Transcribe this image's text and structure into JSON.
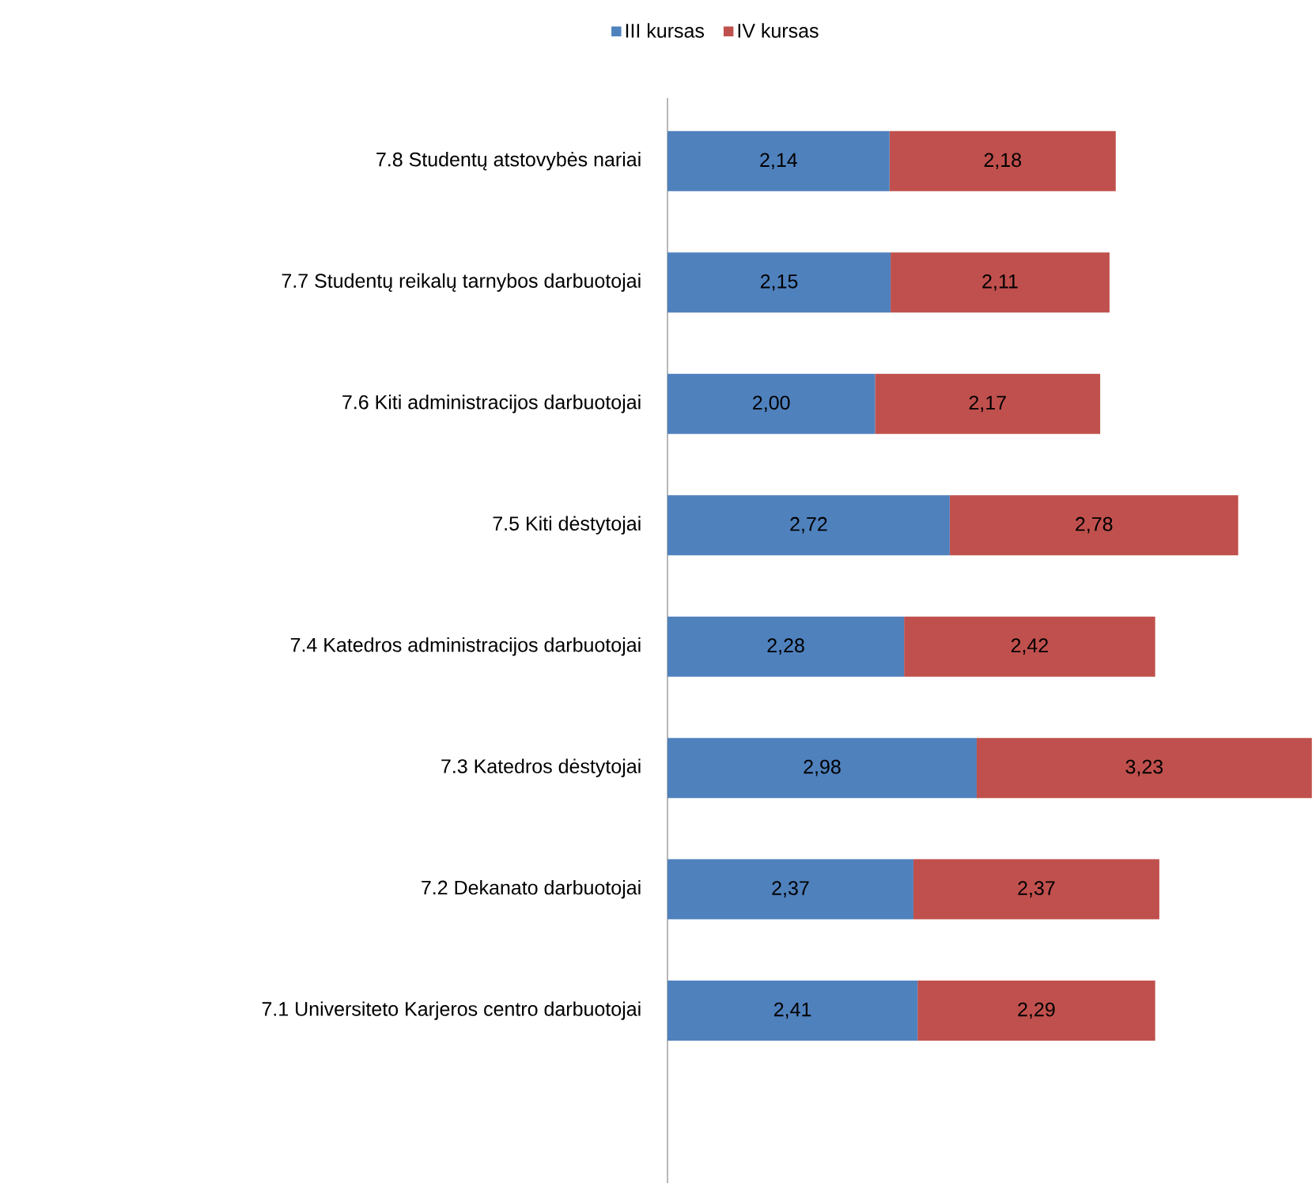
{
  "chart_data": {
    "type": "bar",
    "orientation": "horizontal",
    "stacked": true,
    "categories": [
      "7.8  Studentų atstovybės nariai",
      "7.7  Studentų reikalų tarnybos darbuotojai",
      "7.6  Kiti administracijos darbuotojai",
      "7.5  Kiti dėstytojai",
      "7.4  Katedros administracijos darbuotojai",
      "7.3  Katedros dėstytojai",
      "7.2  Dekanato darbuotojai",
      "7.1  Universiteto Karjeros centro darbuotojai"
    ],
    "series": [
      {
        "name": "III kursas",
        "color": "#4f81bd",
        "values": [
          2.14,
          2.15,
          2.0,
          2.72,
          2.28,
          2.98,
          2.37,
          2.41
        ],
        "value_labels": [
          "2,14",
          "2,15",
          "2,00",
          "2,72",
          "2,28",
          "2,98",
          "2,37",
          "2,41"
        ]
      },
      {
        "name": "IV kursas",
        "color": "#c0504d",
        "values": [
          2.18,
          2.11,
          2.17,
          2.78,
          2.42,
          3.23,
          2.37,
          2.29
        ],
        "value_labels": [
          "2,18",
          "2,11",
          "2,17",
          "2,78",
          "2,42",
          "3,23",
          "2,37",
          "2,29"
        ]
      }
    ],
    "xlim": [
      0,
      6.25
    ],
    "tick_labels": "y",
    "legend": "top"
  }
}
